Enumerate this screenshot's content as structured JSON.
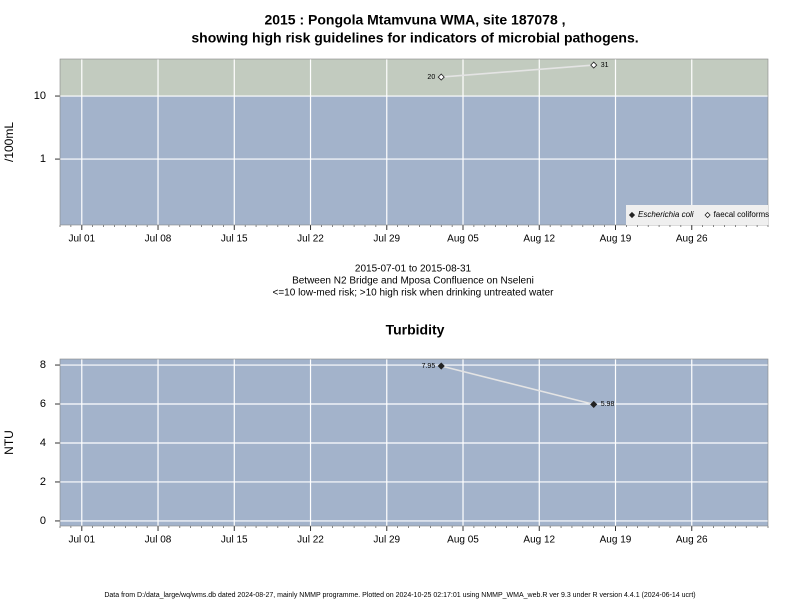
{
  "chart_data": [
    {
      "type": "line",
      "title": [
        "2015 : Pongola Mtamvuna WMA, site 187078 ,",
        "showing high risk guidelines for indicators of microbial pathogens."
      ],
      "ylabel": "/100mL",
      "log_scale": true,
      "ylim": [
        0.09,
        38.7
      ],
      "yticks": [
        1,
        10
      ],
      "xlim": [
        "Jun 29",
        "Sep 02"
      ],
      "xticks": [
        "Jul 01",
        "Jul 08",
        "Jul 15",
        "Jul 22",
        "Jul 29",
        "Aug 05",
        "Aug 12",
        "Aug 19",
        "Aug 26"
      ],
      "grid": true,
      "background": "#a3b3cb",
      "high_risk_threshold": 10,
      "high_risk_color": "#c2cbbf",
      "legend": "bottom-right",
      "x": [
        "Aug 03",
        "Aug 17"
      ],
      "series": [
        {
          "name": "Escherichia coli",
          "color": "#222222",
          "marker": "filled",
          "values": [
            null,
            null
          ]
        },
        {
          "name": "faecal coliforms",
          "color": "#222222",
          "marker": "open",
          "values": [
            20,
            31
          ],
          "value_labels": [
            "20",
            "31"
          ]
        }
      ],
      "annotations": [
        "2015-07-01 to 2015-08-31",
        "Between N2 Bridge and Mposa Confluence on Nseleni",
        "<=10 low-med risk; >10 high risk when drinking untreated water"
      ]
    },
    {
      "type": "line",
      "title": [
        "Turbidity"
      ],
      "ylabel": "NTU",
      "log_scale": false,
      "ylim": [
        -0.26,
        8.31
      ],
      "yticks": [
        0,
        2,
        4,
        6,
        8
      ],
      "xlim": [
        "Jun 29",
        "Sep 02"
      ],
      "xticks": [
        "Jul 01",
        "Jul 08",
        "Jul 15",
        "Jul 22",
        "Jul 29",
        "Aug 05",
        "Aug 12",
        "Aug 19",
        "Aug 26"
      ],
      "grid": true,
      "background": "#a3b3cb",
      "x": [
        "Aug 03",
        "Aug 17"
      ],
      "series": [
        {
          "color": "#222222",
          "marker": "filled",
          "values": [
            7.95,
            5.98
          ],
          "value_labels": [
            "7.95",
            "5.98"
          ]
        }
      ]
    }
  ],
  "footer": "Data from D:/data_large/wq/wms.db dated 2024-08-27, mainly NMMP programme. Plotted on 2024-10-25 02:17:01 using NMMP_WMA_web.R ver 9.3 under R version 4.4.1 (2024-06-14 ucrt)"
}
